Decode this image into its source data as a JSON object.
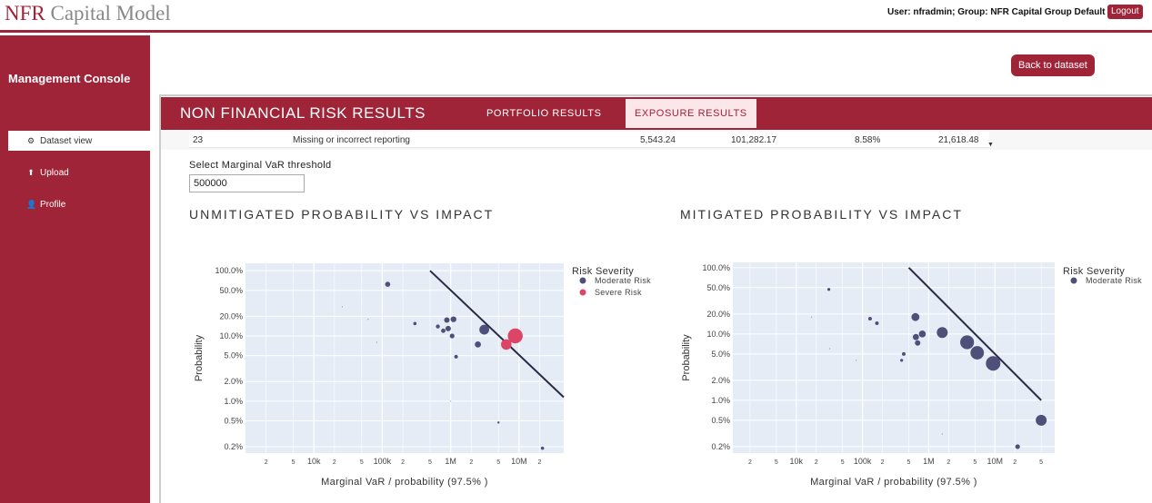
{
  "header": {
    "logo_brand": "NFR",
    "logo_rest": " Capital Model",
    "user_info": "User: nfradmin; Group: NFR Capital Group Default",
    "logout_label": "Logout"
  },
  "sidebar": {
    "title": "Management Console",
    "items": [
      {
        "label": "Dataset view",
        "icon": "gears-icon",
        "glyph": "⚙",
        "active": true
      },
      {
        "label": "Upload",
        "icon": "upload-icon",
        "glyph": "⬆",
        "active": false
      },
      {
        "label": "Profile",
        "icon": "user-icon",
        "glyph": "👤",
        "active": false
      }
    ]
  },
  "main": {
    "back_label": "Back to dataset",
    "panel_title": "NON FINANCIAL RISK RESULTS",
    "tabs": [
      {
        "label": "PORTFOLIO RESULTS",
        "active": false
      },
      {
        "label": "EXPOSURE RESULTS",
        "active": true
      }
    ],
    "table_row": {
      "id": "23",
      "name": "Missing or incorrect reporting",
      "v1": "5,543.24",
      "v2": "101,282.17",
      "pct": "8.58%",
      "v3": "21,618.48"
    },
    "threshold": {
      "label": "Select Marginal VaR threshold",
      "value": "500000"
    }
  },
  "colors": {
    "brand": "#a02438",
    "moderate": "#4f5079",
    "severe": "#dc4565",
    "plot_bg": "#e5ecf6"
  },
  "charts": [
    {
      "title": "UNMITIGATED PROBABILITY VS IMPACT",
      "xlabel": "Marginal VaR / probability (97.5% )",
      "ylabel": "Probability",
      "legend_title": "Risk Severity",
      "legend": [
        {
          "name": "Moderate Risk",
          "color": "#4f5079"
        },
        {
          "name": "Severe Risk",
          "color": "#dc4565"
        }
      ]
    },
    {
      "title": "MITIGATED PROBABILITY VS IMPACT",
      "xlabel": "Marginal VaR / probability (97.5% )",
      "ylabel": "Probability",
      "legend_title": "Risk Severity",
      "legend": [
        {
          "name": "Moderate Risk",
          "color": "#4f5079"
        }
      ]
    }
  ],
  "chart_data": [
    {
      "type": "scatter",
      "title": "UNMITIGATED PROBABILITY VS IMPACT",
      "xlabel": "Marginal VaR / probability (97.5% )",
      "ylabel": "Probability",
      "x_scale": "log",
      "y_scale": "log",
      "xlim": [
        1000,
        45000000
      ],
      "ylim": [
        0.0016,
        1.3
      ],
      "x_ticks": [
        {
          "v": 2000,
          "label": "2"
        },
        {
          "v": 5000,
          "label": "5"
        },
        {
          "v": 10000,
          "label": "10k"
        },
        {
          "v": 20000,
          "label": "2"
        },
        {
          "v": 50000,
          "label": "5"
        },
        {
          "v": 100000,
          "label": "100k"
        },
        {
          "v": 200000,
          "label": "2"
        },
        {
          "v": 500000,
          "label": "5"
        },
        {
          "v": 1000000,
          "label": "1M"
        },
        {
          "v": 2000000,
          "label": "2"
        },
        {
          "v": 5000000,
          "label": "5"
        },
        {
          "v": 10000000,
          "label": "10M"
        },
        {
          "v": 20000000,
          "label": "2"
        }
      ],
      "y_ticks": [
        {
          "v": 1.0,
          "label": "100.0%"
        },
        {
          "v": 0.5,
          "label": "50.0%"
        },
        {
          "v": 0.2,
          "label": "20.0%"
        },
        {
          "v": 0.1,
          "label": "10.0%"
        },
        {
          "v": 0.05,
          "label": "5.0%"
        },
        {
          "v": 0.02,
          "label": "2.0%"
        },
        {
          "v": 0.01,
          "label": "1.0%"
        },
        {
          "v": 0.005,
          "label": "0.5%"
        },
        {
          "v": 0.002,
          "label": "0.2%"
        }
      ],
      "threshold_line": {
        "x": [
          500000,
          45000000
        ],
        "y": [
          1.0,
          0.0115
        ]
      },
      "legend_title": "Risk Severity",
      "series": [
        {
          "name": "Moderate Risk",
          "color": "#4f5079",
          "points": [
            {
              "x": 26000,
              "y": 0.28,
              "size": 0.2
            },
            {
              "x": 62000,
              "y": 0.18,
              "size": 0.3
            },
            {
              "x": 83000,
              "y": 0.08,
              "size": 0.2
            },
            {
              "x": 120000,
              "y": 0.62,
              "size": 2.8
            },
            {
              "x": 300000,
              "y": 0.155,
              "size": 1.8
            },
            {
              "x": 650000,
              "y": 0.14,
              "size": 2.2
            },
            {
              "x": 780000,
              "y": 0.12,
              "size": 2.4
            },
            {
              "x": 880000,
              "y": 0.175,
              "size": 3.0
            },
            {
              "x": 920000,
              "y": 0.13,
              "size": 3.0
            },
            {
              "x": 1000000,
              "y": 0.01,
              "size": 0.3
            },
            {
              "x": 1050000,
              "y": 0.1,
              "size": 2.6
            },
            {
              "x": 1100000,
              "y": 0.18,
              "size": 3.2
            },
            {
              "x": 1200000,
              "y": 0.048,
              "size": 2.0
            },
            {
              "x": 2500000,
              "y": 0.074,
              "size": 3.4
            },
            {
              "x": 3100000,
              "y": 0.125,
              "size": 5.4
            },
            {
              "x": 5000000,
              "y": 0.0047,
              "size": 1.2
            },
            {
              "x": 22000000,
              "y": 0.0019,
              "size": 1.8
            }
          ]
        },
        {
          "name": "Severe Risk",
          "color": "#dc4565",
          "points": [
            {
              "x": 6500000,
              "y": 0.074,
              "size": 5.8
            },
            {
              "x": 8800000,
              "y": 0.1,
              "size": 8.2
            }
          ]
        }
      ]
    },
    {
      "type": "scatter",
      "title": "MITIGATED PROBABILITY VS IMPACT",
      "xlabel": "Marginal VaR / probability (97.5% )",
      "ylabel": "Probability",
      "x_scale": "log",
      "y_scale": "log",
      "xlim": [
        1100,
        80000000
      ],
      "ylim": [
        0.0016,
        1.2
      ],
      "x_ticks": [
        {
          "v": 2000,
          "label": "2"
        },
        {
          "v": 5000,
          "label": "5"
        },
        {
          "v": 10000,
          "label": "10k"
        },
        {
          "v": 20000,
          "label": "2"
        },
        {
          "v": 50000,
          "label": "5"
        },
        {
          "v": 100000,
          "label": "100k"
        },
        {
          "v": 200000,
          "label": "2"
        },
        {
          "v": 500000,
          "label": "5"
        },
        {
          "v": 1000000,
          "label": "1M"
        },
        {
          "v": 2000000,
          "label": "2"
        },
        {
          "v": 5000000,
          "label": "5"
        },
        {
          "v": 10000000,
          "label": "10M"
        },
        {
          "v": 20000000,
          "label": "2"
        },
        {
          "v": 50000000,
          "label": "5"
        }
      ],
      "y_ticks": [
        {
          "v": 1.0,
          "label": "100.0%"
        },
        {
          "v": 0.5,
          "label": "50.0%"
        },
        {
          "v": 0.2,
          "label": "20.0%"
        },
        {
          "v": 0.1,
          "label": "10.0%"
        },
        {
          "v": 0.05,
          "label": "5.0%"
        },
        {
          "v": 0.02,
          "label": "2.0%"
        },
        {
          "v": 0.01,
          "label": "1.0%"
        },
        {
          "v": 0.005,
          "label": "0.5%"
        },
        {
          "v": 0.002,
          "label": "0.2%"
        }
      ],
      "threshold_line": {
        "x": [
          500000,
          50000000
        ],
        "y": [
          1.0,
          0.01
        ]
      },
      "legend_title": "Risk Severity",
      "series": [
        {
          "name": "Moderate Risk",
          "color": "#4f5079",
          "points": [
            {
              "x": 17000,
              "y": 0.18,
              "size": 0.2
            },
            {
              "x": 31000,
              "y": 0.47,
              "size": 1.6
            },
            {
              "x": 32000,
              "y": 0.06,
              "size": 0.2
            },
            {
              "x": 80000,
              "y": 0.04,
              "size": 0.2
            },
            {
              "x": 130000,
              "y": 0.17,
              "size": 2.0
            },
            {
              "x": 165000,
              "y": 0.145,
              "size": 2.0
            },
            {
              "x": 390000,
              "y": 0.04,
              "size": 1.6
            },
            {
              "x": 420000,
              "y": 0.05,
              "size": 2.0
            },
            {
              "x": 630000,
              "y": 0.18,
              "size": 4.4
            },
            {
              "x": 640000,
              "y": 0.09,
              "size": 3.4
            },
            {
              "x": 680000,
              "y": 0.073,
              "size": 3.0
            },
            {
              "x": 800000,
              "y": 0.1,
              "size": 3.8
            },
            {
              "x": 1600000,
              "y": 0.0031,
              "size": 0.2
            },
            {
              "x": 1600000,
              "y": 0.105,
              "size": 6.0
            },
            {
              "x": 3800000,
              "y": 0.075,
              "size": 7.6
            },
            {
              "x": 5400000,
              "y": 0.052,
              "size": 7.4
            },
            {
              "x": 9400000,
              "y": 0.036,
              "size": 8.0
            },
            {
              "x": 22000000,
              "y": 0.002,
              "size": 2.6
            },
            {
              "x": 50000000,
              "y": 0.005,
              "size": 6.0
            }
          ]
        }
      ]
    }
  ]
}
